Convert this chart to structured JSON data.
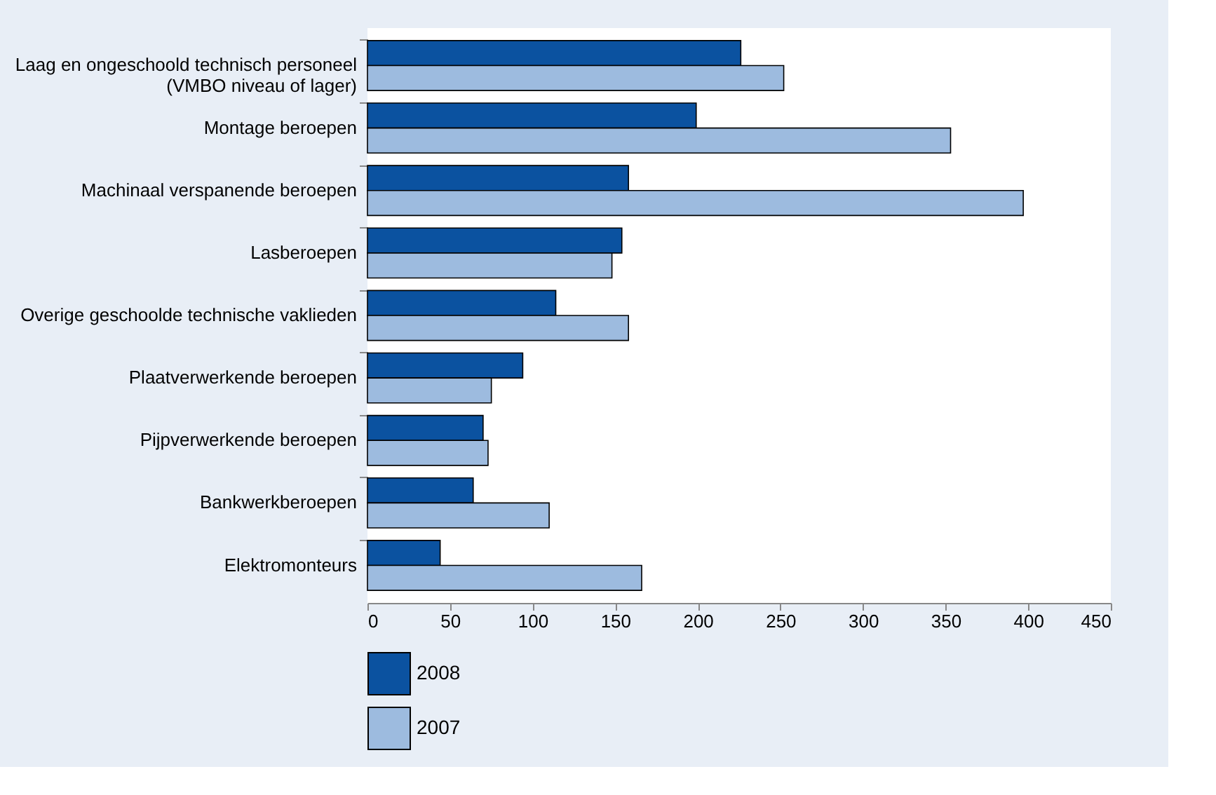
{
  "chart_data": {
    "type": "bar",
    "orientation": "horizontal",
    "categories": [
      "Laag en ongeschoold technisch personeel\n(VMBO niveau of lager)",
      "Montage beroepen",
      "Machinaal verspanende beroepen",
      "Lasberoepen",
      "Overige geschoolde technische vaklieden",
      "Plaatverwerkende beroepen",
      "Pijpverwerkende beroepen",
      "Bankwerkberoepen",
      "Elektromonteurs"
    ],
    "series": [
      {
        "name": "2008",
        "color": "#0b52a0",
        "values": [
          226,
          199,
          158,
          154,
          114,
          94,
          70,
          64,
          44
        ]
      },
      {
        "name": "2007",
        "color": "#9dbbdf",
        "values": [
          252,
          353,
          397,
          148,
          158,
          75,
          73,
          110,
          166
        ]
      }
    ],
    "xlim": [
      0,
      450
    ],
    "xticks": [
      0,
      50,
      100,
      150,
      200,
      250,
      300,
      350,
      400,
      450
    ],
    "grid": false,
    "legend": "bottom"
  }
}
